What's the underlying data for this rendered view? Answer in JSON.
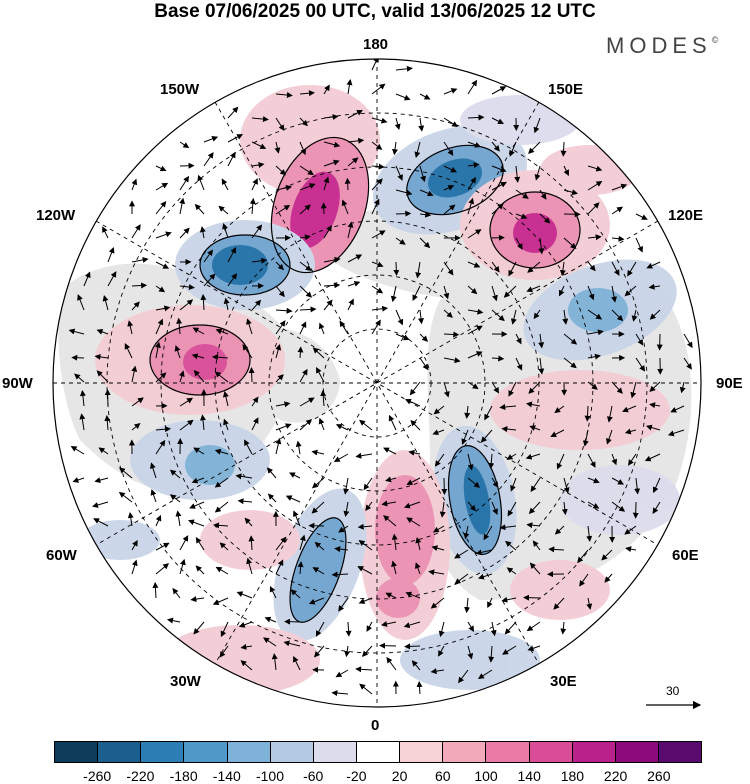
{
  "title": "Base 07/06/2025 00 UTC, valid 13/06/2025 12 UTC",
  "brand": "MODES",
  "brand_mark": "©",
  "longitude_labels": {
    "top": "180",
    "bottom": "0",
    "left": "90W",
    "right": "90E",
    "l150": "150W",
    "l120": "120W",
    "l60": "60W",
    "l30": "30W",
    "r150": "150E",
    "r120": "120E",
    "r60": "60E",
    "r30": "30E"
  },
  "reference_vector": "30",
  "colorbar": {
    "colors": [
      "#0d3b5a",
      "#1a5f8e",
      "#2e7eb6",
      "#4f98c8",
      "#7eb2d8",
      "#b3cae3",
      "#dcdcec",
      "#ffffff",
      "#f7d3d8",
      "#f2a9b9",
      "#ea7aa6",
      "#d94c98",
      "#b8228a",
      "#8c0b7c",
      "#5a0a6c"
    ],
    "tick_labels": [
      "-260",
      "-220",
      "-180",
      "-140",
      "-100",
      "-60",
      "-20",
      "20",
      "60",
      "100",
      "140",
      "180",
      "220",
      "260"
    ]
  },
  "anomaly_colors": {
    "neg_strong": "#1f6fa6",
    "neg_mid": "#6fa3cf",
    "neg_weak": "#c9d5e8",
    "pos_weak": "#f4ccd4",
    "pos_mid": "#eb8fb1",
    "pos_strong": "#c6258c",
    "land": "#e6e6e6"
  }
}
